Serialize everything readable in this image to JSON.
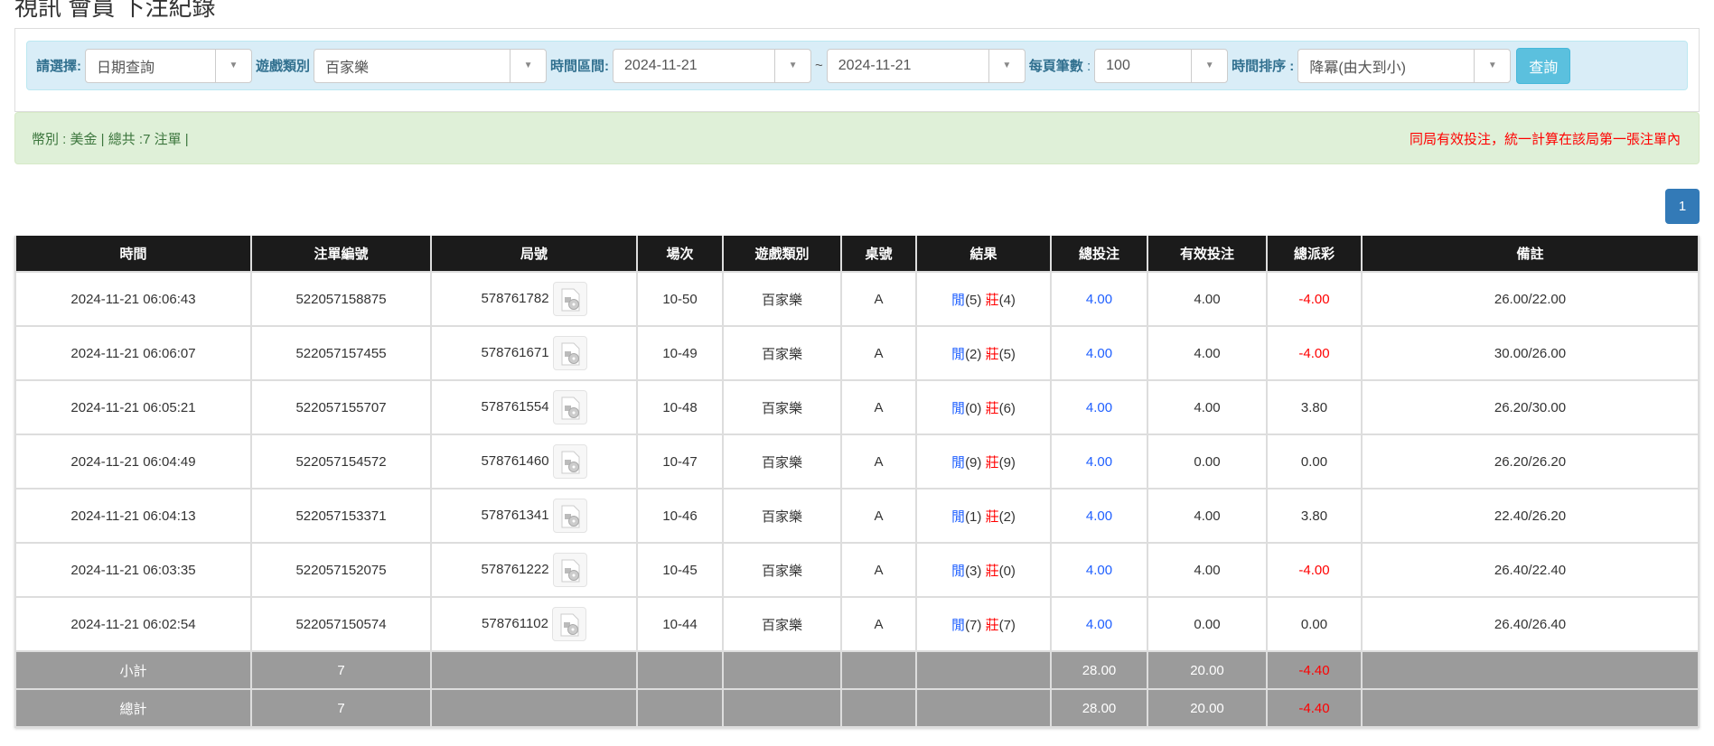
{
  "title": "視訊 會員 下注紀錄",
  "filter": {
    "select_label": "請選擇:",
    "select_value": "日期查詢",
    "game_label": "遊戲類別",
    "game_value": "百家樂",
    "range_label": "時間區間:",
    "date_from": "2024-11-21",
    "tilde": "~",
    "date_to": "2024-11-21",
    "per_page_label": "每頁筆數",
    "per_page_colon": ":",
    "per_page_value": "100",
    "sort_label": "時間排序 :",
    "sort_value": "降冪(由大到小)",
    "query_button": "查詢"
  },
  "summary": {
    "left": "幣別 : 美金 | 總共 :7 注單 |",
    "right": "同局有效投注，統一計算在該局第一張注單內"
  },
  "pagination": {
    "current": "1"
  },
  "colors": {
    "header_bg": "#1b1b1b",
    "footer_bg": "#9b9b9b",
    "bet_blue": "#2060ff",
    "negative_red": "#ff0000",
    "accent": "#5bc0de",
    "page": "#337ab7"
  },
  "table": {
    "columns": [
      "時間",
      "注單編號",
      "局號",
      "場次",
      "遊戲類別",
      "桌號",
      "結果",
      "總投注",
      "有效投注",
      "總派彩",
      "備註"
    ],
    "player_label": "閒",
    "banker_label": "莊",
    "rows": [
      {
        "time": "2024-11-21 06:06:43",
        "bet_id": "522057158875",
        "round": "578761782",
        "shoe": "10-50",
        "game": "百家樂",
        "table": "A",
        "player": "(5)",
        "banker": "(4)",
        "total": "4.00",
        "valid": "4.00",
        "payout": "-4.00",
        "note": "26.00/22.00"
      },
      {
        "time": "2024-11-21 06:06:07",
        "bet_id": "522057157455",
        "round": "578761671",
        "shoe": "10-49",
        "game": "百家樂",
        "table": "A",
        "player": "(2)",
        "banker": "(5)",
        "total": "4.00",
        "valid": "4.00",
        "payout": "-4.00",
        "note": "30.00/26.00"
      },
      {
        "time": "2024-11-21 06:05:21",
        "bet_id": "522057155707",
        "round": "578761554",
        "shoe": "10-48",
        "game": "百家樂",
        "table": "A",
        "player": "(0)",
        "banker": "(6)",
        "total": "4.00",
        "valid": "4.00",
        "payout": "3.80",
        "note": "26.20/30.00"
      },
      {
        "time": "2024-11-21 06:04:49",
        "bet_id": "522057154572",
        "round": "578761460",
        "shoe": "10-47",
        "game": "百家樂",
        "table": "A",
        "player": "(9)",
        "banker": "(9)",
        "total": "4.00",
        "valid": "0.00",
        "payout": "0.00",
        "note": "26.20/26.20"
      },
      {
        "time": "2024-11-21 06:04:13",
        "bet_id": "522057153371",
        "round": "578761341",
        "shoe": "10-46",
        "game": "百家樂",
        "table": "A",
        "player": "(1)",
        "banker": "(2)",
        "total": "4.00",
        "valid": "4.00",
        "payout": "3.80",
        "note": "22.40/26.20"
      },
      {
        "time": "2024-11-21 06:03:35",
        "bet_id": "522057152075",
        "round": "578761222",
        "shoe": "10-45",
        "game": "百家樂",
        "table": "A",
        "player": "(3)",
        "banker": "(0)",
        "total": "4.00",
        "valid": "4.00",
        "payout": "-4.00",
        "note": "26.40/22.40"
      },
      {
        "time": "2024-11-21 06:02:54",
        "bet_id": "522057150574",
        "round": "578761102",
        "shoe": "10-44",
        "game": "百家樂",
        "table": "A",
        "player": "(7)",
        "banker": "(7)",
        "total": "4.00",
        "valid": "0.00",
        "payout": "0.00",
        "note": "26.40/26.40"
      }
    ],
    "footers": [
      {
        "label": "小計",
        "count": "7",
        "total": "28.00",
        "valid": "20.00",
        "payout": "-4.40"
      },
      {
        "label": "總計",
        "count": "7",
        "total": "28.00",
        "valid": "20.00",
        "payout": "-4.40"
      }
    ]
  }
}
